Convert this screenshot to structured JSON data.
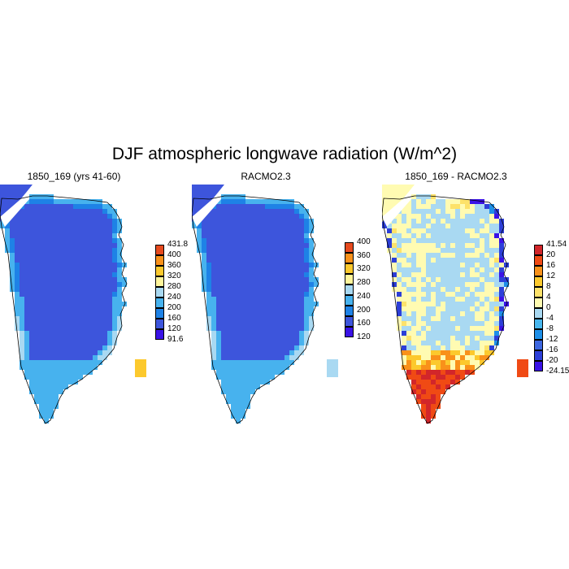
{
  "title": "DJF atmospheric longwave radiation (W/m^2)",
  "colors": {
    "abs_scale": [
      "#3a12e6",
      "#3d55dc",
      "#1e82e6",
      "#47b2ee",
      "#a9d9f2",
      "#fff59b",
      "#fcc92d",
      "#f9911a",
      "#e64a1e",
      "#d2262a"
    ],
    "diff_scale": [
      "#3a12e6",
      "#2d3fd8",
      "#3d67e0",
      "#1e8fe8",
      "#48b6ee",
      "#a9d9f2",
      "#fffbb2",
      "#fde26a",
      "#fcc92d",
      "#f9911a",
      "#f04a14",
      "#d2262a"
    ],
    "land_outline": "#000000"
  },
  "panels": [
    {
      "id": "model",
      "title": "1850_169 (yrs 41-60)",
      "scale": "abs",
      "colorbar_labels": [
        "431.8",
        "400",
        "360",
        "320",
        "280",
        "240",
        "200",
        "160",
        "120",
        "91.6"
      ]
    },
    {
      "id": "racmo",
      "title": "RACMO2.3",
      "scale": "abs",
      "colorbar_labels": [
        "400",
        "360",
        "320",
        "280",
        "240",
        "200",
        "160",
        "120"
      ]
    },
    {
      "id": "diff",
      "title": "1850_169 - RACMO2.3",
      "scale": "diff",
      "colorbar_labels": [
        "41.54",
        "20",
        "16",
        "12",
        "8",
        "4",
        "0",
        "-4",
        "-8",
        "-12",
        "-16",
        "-20",
        "-24.15"
      ]
    }
  ],
  "chart_data": {
    "type": "heatmap",
    "title": "DJF atmospheric longwave radiation (W/m^2)",
    "maps": [
      {
        "name": "1850_169 (yrs 41-60)",
        "range": [
          91.6,
          431.8
        ],
        "interior_value_band": [
          120,
          160
        ],
        "coastal_value_band": [
          160,
          240
        ]
      },
      {
        "name": "RACMO2.3",
        "range": [
          120,
          400
        ],
        "interior_value_band": [
          120,
          160
        ],
        "coastal_value_band": [
          160,
          240
        ]
      },
      {
        "name": "1850_169 - RACMO2.3",
        "range": [
          -24.15,
          41.54
        ],
        "interior_value_band": [
          -4,
          4
        ],
        "southern_tip_value_band": [
          16,
          41.54
        ],
        "east_coast_value_band": [
          -24.15,
          -8
        ]
      }
    ]
  }
}
